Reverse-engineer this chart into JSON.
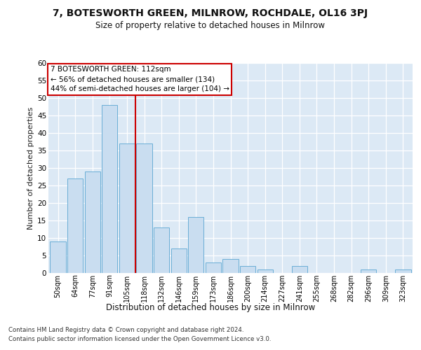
{
  "title1": "7, BOTESWORTH GREEN, MILNROW, ROCHDALE, OL16 3PJ",
  "title2": "Size of property relative to detached houses in Milnrow",
  "xlabel": "Distribution of detached houses by size in Milnrow",
  "ylabel": "Number of detached properties",
  "categories": [
    "50sqm",
    "64sqm",
    "77sqm",
    "91sqm",
    "105sqm",
    "118sqm",
    "132sqm",
    "146sqm",
    "159sqm",
    "173sqm",
    "186sqm",
    "200sqm",
    "214sqm",
    "227sqm",
    "241sqm",
    "255sqm",
    "268sqm",
    "282sqm",
    "296sqm",
    "309sqm",
    "323sqm"
  ],
  "values": [
    9,
    27,
    29,
    48,
    37,
    37,
    13,
    7,
    16,
    3,
    4,
    2,
    1,
    0,
    2,
    0,
    0,
    0,
    1,
    0,
    1
  ],
  "bar_color": "#c9ddf0",
  "bar_edge_color": "#6aaed6",
  "vline_x": 4.5,
  "vline_color": "#cc0000",
  "annotation_text": "7 BOTESWORTH GREEN: 112sqm\n← 56% of detached houses are smaller (134)\n44% of semi-detached houses are larger (104) →",
  "annotation_box_color": "#ffffff",
  "annotation_box_edge_color": "#cc0000",
  "ylim": [
    0,
    60
  ],
  "yticks": [
    0,
    5,
    10,
    15,
    20,
    25,
    30,
    35,
    40,
    45,
    50,
    55,
    60
  ],
  "footer1": "Contains HM Land Registry data © Crown copyright and database right 2024.",
  "footer2": "Contains public sector information licensed under the Open Government Licence v3.0.",
  "fig_bg_color": "#ffffff",
  "plot_bg_color": "#dce9f5"
}
